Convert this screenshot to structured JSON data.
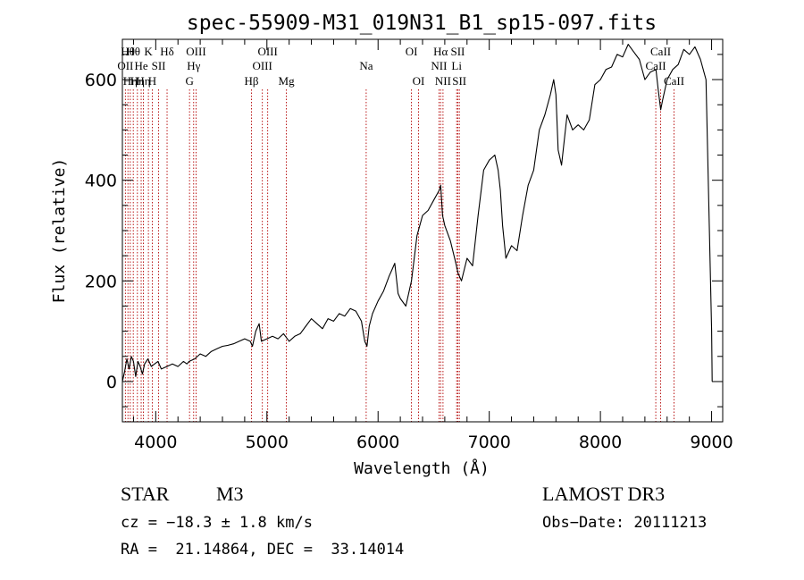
{
  "chart_data": {
    "type": "line",
    "title": "spec-55909-M31_019N31_B1_sp15-097.fits",
    "xlabel": "Wavelength (Å)",
    "ylabel": "Flux (relative)",
    "xlim": [
      3700,
      9100
    ],
    "ylim": [
      -80,
      680
    ],
    "xticks": [
      4000,
      5000,
      6000,
      7000,
      8000,
      9000
    ],
    "yticks": [
      0,
      200,
      400,
      600
    ],
    "series": [
      {
        "name": "spectrum",
        "x": [
          3700,
          3720,
          3740,
          3760,
          3780,
          3800,
          3820,
          3840,
          3860,
          3880,
          3900,
          3930,
          3960,
          3990,
          4020,
          4050,
          4100,
          4150,
          4200,
          4250,
          4280,
          4300,
          4350,
          4400,
          4450,
          4500,
          4550,
          4600,
          4650,
          4700,
          4750,
          4800,
          4850,
          4870,
          4900,
          4930,
          4950,
          5000,
          5050,
          5100,
          5150,
          5200,
          5250,
          5300,
          5350,
          5400,
          5450,
          5500,
          5550,
          5600,
          5650,
          5700,
          5750,
          5800,
          5850,
          5880,
          5900,
          5920,
          5950,
          6000,
          6050,
          6100,
          6120,
          6150,
          6180,
          6200,
          6250,
          6300,
          6350,
          6400,
          6450,
          6500,
          6550,
          6563,
          6580,
          6600,
          6650,
          6700,
          6720,
          6750,
          6800,
          6850,
          6900,
          6950,
          7000,
          7050,
          7080,
          7100,
          7120,
          7150,
          7200,
          7250,
          7300,
          7350,
          7400,
          7450,
          7500,
          7550,
          7580,
          7600,
          7620,
          7650,
          7680,
          7700,
          7750,
          7800,
          7850,
          7900,
          7950,
          8000,
          8050,
          8100,
          8150,
          8200,
          8250,
          8300,
          8350,
          8400,
          8450,
          8500,
          8520,
          8542,
          8560,
          8600,
          8650,
          8700,
          8750,
          8800,
          8850,
          8900,
          8950,
          8980,
          9000,
          9005
        ],
        "values": [
          0,
          20,
          45,
          25,
          50,
          40,
          10,
          40,
          30,
          15,
          35,
          45,
          30,
          35,
          40,
          25,
          30,
          35,
          30,
          40,
          35,
          40,
          45,
          55,
          50,
          60,
          65,
          70,
          72,
          75,
          80,
          85,
          80,
          70,
          100,
          115,
          80,
          85,
          90,
          85,
          95,
          80,
          90,
          95,
          110,
          125,
          115,
          105,
          125,
          120,
          135,
          130,
          145,
          140,
          120,
          80,
          70,
          110,
          135,
          160,
          180,
          210,
          220,
          235,
          175,
          165,
          150,
          200,
          290,
          330,
          340,
          360,
          380,
          390,
          330,
          310,
          280,
          235,
          215,
          200,
          245,
          230,
          330,
          420,
          440,
          450,
          420,
          380,
          310,
          245,
          270,
          260,
          330,
          390,
          420,
          500,
          530,
          570,
          600,
          570,
          460,
          430,
          490,
          530,
          500,
          510,
          500,
          520,
          590,
          600,
          620,
          625,
          650,
          645,
          670,
          655,
          640,
          600,
          615,
          620,
          580,
          540,
          560,
          600,
          620,
          630,
          660,
          650,
          665,
          640,
          600,
          300,
          100,
          0
        ]
      }
    ],
    "reference_lines": [
      {
        "wavelength": 3727,
        "label": "OII",
        "row": 2
      },
      {
        "wavelength": 3750,
        "label": "Hθ",
        "row": 1
      },
      {
        "wavelength": 3771,
        "label": "Hη",
        "row": 3
      },
      {
        "wavelength": 3798,
        "label": "Hθ",
        "row": 1
      },
      {
        "wavelength": 3835,
        "label": "Hη",
        "row": 3
      },
      {
        "wavelength": 3869,
        "label": "He",
        "row": 2
      },
      {
        "wavelength": 3889,
        "label": "Hη",
        "row": 3
      },
      {
        "wavelength": 3934,
        "label": "K",
        "row": 1
      },
      {
        "wavelength": 3969,
        "label": "H",
        "row": 3
      },
      {
        "wavelength": 4026,
        "label": "SII",
        "row": 2
      },
      {
        "wavelength": 4102,
        "label": "Hδ",
        "row": 1
      },
      {
        "wavelength": 4304,
        "label": "G",
        "row": 3
      },
      {
        "wavelength": 4341,
        "label": "Hγ",
        "row": 2
      },
      {
        "wavelength": 4363,
        "label": "OIII",
        "row": 1
      },
      {
        "wavelength": 4861,
        "label": "Hβ",
        "row": 3
      },
      {
        "wavelength": 4959,
        "label": "OIII",
        "row": 2
      },
      {
        "wavelength": 5007,
        "label": "OIII",
        "row": 1
      },
      {
        "wavelength": 5175,
        "label": "Mg",
        "row": 3
      },
      {
        "wavelength": 5893,
        "label": "Na",
        "row": 2
      },
      {
        "wavelength": 6300,
        "label": "OI",
        "row": 1
      },
      {
        "wavelength": 6364,
        "label": "OI",
        "row": 3
      },
      {
        "wavelength": 6548,
        "label": "NII",
        "row": 2
      },
      {
        "wavelength": 6563,
        "label": "Hα",
        "row": 1
      },
      {
        "wavelength": 6584,
        "label": "NII",
        "row": 3
      },
      {
        "wavelength": 6707,
        "label": "Li",
        "row": 2
      },
      {
        "wavelength": 6717,
        "label": "SII",
        "row": 1
      },
      {
        "wavelength": 6731,
        "label": "SII",
        "row": 3
      },
      {
        "wavelength": 8498,
        "label": "CaII",
        "row": 2
      },
      {
        "wavelength": 8542,
        "label": "CaII",
        "row": 1
      },
      {
        "wavelength": 8662,
        "label": "CaII",
        "row": 3
      }
    ]
  },
  "info": {
    "class": "STAR",
    "subclass": "M3",
    "survey": "LAMOST DR3",
    "redshift": "cz = −18.3 ± 1.8 km/s",
    "obs_date": "Obs−Date: 20111213",
    "coords": "RA =  21.14864, DEC =  33.14014"
  },
  "colors": {
    "spectrum": "#000000",
    "reference_line": "#b30000",
    "axes": "#000000"
  }
}
